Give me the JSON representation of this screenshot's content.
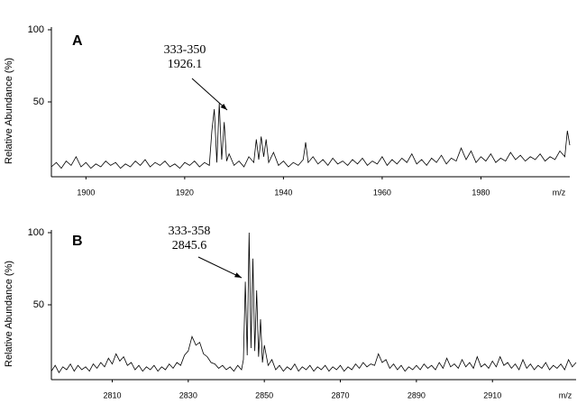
{
  "chart_data": [
    {
      "type": "line",
      "panel_label": "A",
      "y_label": "Relative Abundance (%)",
      "x_label": "m/z",
      "annotation_lines": [
        "333-350",
        "1926.1"
      ],
      "color": "#000000",
      "xlim": [
        1893,
        1998
      ],
      "ylim": [
        0,
        100
      ],
      "xticks": [
        1900,
        1920,
        1940,
        1960,
        1980
      ],
      "yticks": [
        50,
        100
      ],
      "x": [
        1893,
        1894,
        1895,
        1896,
        1897,
        1898,
        1899,
        1900,
        1901,
        1902,
        1903,
        1904,
        1905,
        1906,
        1907,
        1908,
        1909,
        1910,
        1911,
        1912,
        1913,
        1914,
        1915,
        1916,
        1917,
        1918,
        1919,
        1920,
        1921,
        1922,
        1923,
        1924,
        1925,
        1925.5,
        1926,
        1926.5,
        1927,
        1927.5,
        1928,
        1928.5,
        1929,
        1930,
        1931,
        1932,
        1933,
        1934,
        1934.5,
        1935,
        1935.5,
        1936,
        1936.5,
        1937,
        1938,
        1939,
        1940,
        1941,
        1942,
        1943,
        1944,
        1944.5,
        1945,
        1946,
        1947,
        1948,
        1949,
        1950,
        1951,
        1952,
        1953,
        1954,
        1955,
        1956,
        1957,
        1958,
        1959,
        1960,
        1961,
        1962,
        1963,
        1964,
        1965,
        1966,
        1967,
        1968,
        1969,
        1970,
        1971,
        1972,
        1973,
        1974,
        1975,
        1976,
        1977,
        1978,
        1979,
        1980,
        1981,
        1982,
        1983,
        1984,
        1985,
        1986,
        1987,
        1988,
        1989,
        1990,
        1991,
        1992,
        1993,
        1994,
        1995,
        1996,
        1997,
        1997.5,
        1998
      ],
      "values": [
        5,
        8,
        4,
        9,
        6,
        12,
        5,
        8,
        4,
        7,
        5,
        9,
        6,
        8,
        4,
        7,
        5,
        9,
        6,
        10,
        5,
        8,
        6,
        9,
        5,
        7,
        4,
        8,
        6,
        9,
        5,
        8,
        6,
        30,
        45,
        8,
        49,
        10,
        36,
        9,
        14,
        6,
        9,
        5,
        12,
        8,
        24,
        10,
        26,
        12,
        24,
        8,
        15,
        6,
        9,
        5,
        8,
        6,
        10,
        22,
        8,
        12,
        7,
        10,
        6,
        11,
        7,
        9,
        6,
        10,
        7,
        11,
        6,
        9,
        7,
        12,
        6,
        10,
        7,
        11,
        8,
        14,
        7,
        10,
        6,
        11,
        8,
        13,
        7,
        11,
        9,
        18,
        10,
        16,
        8,
        12,
        9,
        14,
        8,
        11,
        9,
        15,
        10,
        13,
        9,
        12,
        10,
        14,
        9,
        12,
        10,
        16,
        12,
        30,
        20
      ]
    },
    {
      "type": "line",
      "panel_label": "B",
      "y_label": "Relative Abundance (%)",
      "x_label": "m/z",
      "annotation_lines": [
        "333-358",
        "2845.6"
      ],
      "color": "#000000",
      "xlim": [
        2794,
        2932
      ],
      "ylim": [
        0,
        100
      ],
      "xticks": [
        2810,
        2830,
        2850,
        2870,
        2890,
        2910
      ],
      "yticks": [
        50,
        100
      ],
      "x": [
        2794,
        2795,
        2796,
        2797,
        2798,
        2799,
        2800,
        2801,
        2802,
        2803,
        2804,
        2805,
        2806,
        2807,
        2808,
        2809,
        2810,
        2811,
        2812,
        2813,
        2814,
        2815,
        2816,
        2817,
        2818,
        2819,
        2820,
        2821,
        2822,
        2823,
        2824,
        2825,
        2826,
        2827,
        2828,
        2829,
        2830,
        2831,
        2832,
        2833,
        2834,
        2835,
        2836,
        2837,
        2838,
        2839,
        2840,
        2841,
        2842,
        2843,
        2844,
        2844.5,
        2845,
        2845.5,
        2846,
        2846.5,
        2847,
        2847.5,
        2848,
        2848.5,
        2849,
        2849.5,
        2850,
        2851,
        2852,
        2853,
        2854,
        2855,
        2856,
        2857,
        2858,
        2859,
        2860,
        2861,
        2862,
        2863,
        2864,
        2865,
        2866,
        2867,
        2868,
        2869,
        2870,
        2871,
        2872,
        2873,
        2874,
        2875,
        2876,
        2877,
        2878,
        2879,
        2880,
        2881,
        2882,
        2883,
        2884,
        2885,
        2886,
        2887,
        2888,
        2889,
        2890,
        2891,
        2892,
        2893,
        2894,
        2895,
        2896,
        2897,
        2898,
        2899,
        2900,
        2901,
        2902,
        2903,
        2904,
        2905,
        2906,
        2907,
        2908,
        2909,
        2910,
        2911,
        2912,
        2913,
        2914,
        2915,
        2916,
        2917,
        2918,
        2919,
        2920,
        2921,
        2922,
        2923,
        2924,
        2925,
        2926,
        2927,
        2928,
        2929,
        2930,
        2931,
        2932
      ],
      "values": [
        4,
        8,
        3,
        7,
        5,
        9,
        4,
        8,
        5,
        7,
        4,
        9,
        6,
        10,
        7,
        13,
        9,
        16,
        11,
        14,
        8,
        10,
        5,
        8,
        4,
        7,
        5,
        8,
        4,
        7,
        5,
        9,
        6,
        10,
        8,
        15,
        18,
        28,
        22,
        24,
        16,
        14,
        10,
        9,
        6,
        8,
        5,
        7,
        4,
        8,
        5,
        12,
        66,
        15,
        100,
        20,
        82,
        18,
        60,
        14,
        40,
        10,
        22,
        8,
        12,
        5,
        8,
        4,
        7,
        5,
        9,
        4,
        7,
        5,
        8,
        4,
        7,
        5,
        8,
        4,
        7,
        5,
        8,
        4,
        7,
        5,
        9,
        6,
        10,
        7,
        9,
        8,
        16,
        10,
        12,
        6,
        9,
        5,
        8,
        4,
        7,
        5,
        8,
        5,
        9,
        6,
        8,
        5,
        10,
        6,
        13,
        7,
        9,
        6,
        12,
        7,
        10,
        6,
        14,
        7,
        9,
        6,
        11,
        7,
        14,
        8,
        10,
        6,
        9,
        5,
        12,
        6,
        9,
        5,
        8,
        6,
        10,
        5,
        8,
        6,
        9,
        5,
        12,
        7,
        10
      ]
    }
  ]
}
